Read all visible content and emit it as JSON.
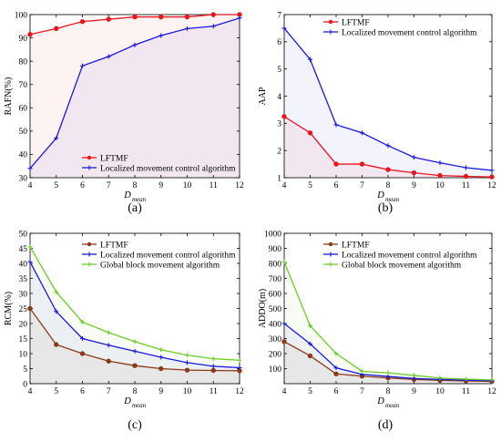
{
  "figure": {
    "panels": [
      {
        "label": "(a)",
        "chart_data": {
          "type": "line",
          "xlabel": "D",
          "xlabel_sub": "mean",
          "ylabel": "RAFN(%)",
          "x": [
            4,
            5,
            6,
            7,
            8,
            9,
            10,
            11,
            12
          ],
          "xlim": [
            4,
            12
          ],
          "ylim": [
            30,
            100
          ],
          "yticks": [
            30,
            40,
            50,
            60,
            70,
            80,
            90,
            100
          ],
          "legend_position": "lower-right",
          "series": [
            {
              "name": "LFTMF",
              "color": "#e8161d",
              "marker": "circle",
              "values": [
                91.5,
                94,
                97,
                98,
                99,
                99,
                99,
                100,
                100
              ]
            },
            {
              "name": "Localized movement control algorithm",
              "color": "#1a1adb",
              "marker": "plus",
              "values": [
                34,
                47,
                78,
                82,
                87,
                91,
                94,
                95,
                98.5
              ]
            }
          ]
        }
      },
      {
        "label": "(b)",
        "chart_data": {
          "type": "line",
          "xlabel": "D",
          "xlabel_sub": "mean",
          "ylabel": "AAP",
          "x": [
            4,
            5,
            6,
            7,
            8,
            9,
            10,
            11,
            12
          ],
          "xlim": [
            4,
            12
          ],
          "ylim": [
            1,
            7
          ],
          "yticks": [
            1,
            2,
            3,
            4,
            5,
            6,
            7
          ],
          "legend_position": "top-right",
          "series": [
            {
              "name": "LFTMF",
              "color": "#e8161d",
              "marker": "circle",
              "values": [
                3.25,
                2.65,
                1.5,
                1.5,
                1.3,
                1.18,
                1.08,
                1.05,
                1.03
              ]
            },
            {
              "name": "Localized movement control algorithm",
              "color": "#1a1adb",
              "marker": "plus",
              "values": [
                6.5,
                5.35,
                2.95,
                2.65,
                2.18,
                1.75,
                1.55,
                1.37,
                1.27
              ]
            }
          ]
        }
      },
      {
        "label": "(c)",
        "chart_data": {
          "type": "line",
          "xlabel": "D",
          "xlabel_sub": "mean",
          "ylabel": "RCM(%)",
          "x": [
            4,
            5,
            6,
            7,
            8,
            9,
            10,
            11,
            12
          ],
          "xlim": [
            4,
            12
          ],
          "ylim": [
            0,
            50
          ],
          "yticks": [
            0,
            5,
            10,
            15,
            20,
            25,
            30,
            35,
            40,
            45,
            50
          ],
          "legend_position": "top-right",
          "series": [
            {
              "name": "LFTMF",
              "color": "#8b3a1a",
              "marker": "circle",
              "values": [
                25,
                13,
                10,
                7.5,
                6,
                5,
                4.5,
                4.4,
                4.3
              ]
            },
            {
              "name": "Localized movement control algorithm",
              "color": "#1a1adb",
              "marker": "plus",
              "values": [
                40.5,
                24,
                15,
                12.8,
                10.8,
                8.8,
                7,
                5.8,
                5.3
              ]
            },
            {
              "name": "Global block movement algorithm",
              "color": "#6ecb28",
              "marker": "plus",
              "values": [
                45.5,
                30.5,
                20.5,
                17,
                14,
                11.3,
                9.5,
                8.3,
                7.8
              ]
            }
          ]
        }
      },
      {
        "label": "(d)",
        "chart_data": {
          "type": "line",
          "xlabel": "D",
          "xlabel_sub": "mean",
          "ylabel": "ADDO(m)",
          "x": [
            4,
            5,
            6,
            7,
            8,
            9,
            10,
            11,
            12
          ],
          "xlim": [
            4,
            12
          ],
          "ylim": [
            0,
            1000
          ],
          "yticks": [
            100,
            200,
            300,
            400,
            500,
            600,
            700,
            800,
            900,
            1000
          ],
          "legend_position": "top-right",
          "series": [
            {
              "name": "LFTMF",
              "color": "#8b3a1a",
              "marker": "circle",
              "values": [
                280,
                185,
                65,
                50,
                38,
                28,
                22,
                18,
                15
              ]
            },
            {
              "name": "Localized movement control algorithm",
              "color": "#1a1adb",
              "marker": "plus",
              "values": [
                400,
                265,
                105,
                62,
                48,
                35,
                28,
                24,
                20
              ]
            },
            {
              "name": "Global block movement algorithm",
              "color": "#6ecb28",
              "marker": "plus",
              "values": [
                810,
                385,
                200,
                82,
                72,
                55,
                38,
                30,
                25
              ]
            }
          ]
        }
      }
    ]
  }
}
